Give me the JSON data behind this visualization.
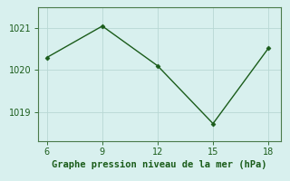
{
  "x": [
    6,
    9,
    12,
    15,
    18
  ],
  "y": [
    1020.3,
    1021.05,
    1020.1,
    1018.72,
    1020.52
  ],
  "line_color": "#1a5c1a",
  "marker": "D",
  "marker_size": 2.5,
  "background_color": "#d8f0ee",
  "grid_color": "#b8d8d4",
  "xlabel": "Graphe pression niveau de la mer (hPa)",
  "xlabel_color": "#1a5c1a",
  "xlabel_fontsize": 7.5,
  "xticks": [
    6,
    9,
    12,
    15,
    18
  ],
  "yticks": [
    1019,
    1020,
    1021
  ],
  "ylim": [
    1018.3,
    1021.5
  ],
  "xlim": [
    5.5,
    18.7
  ],
  "tick_fontsize": 7,
  "line_width": 1.0,
  "spine_color": "#4a7a4a"
}
